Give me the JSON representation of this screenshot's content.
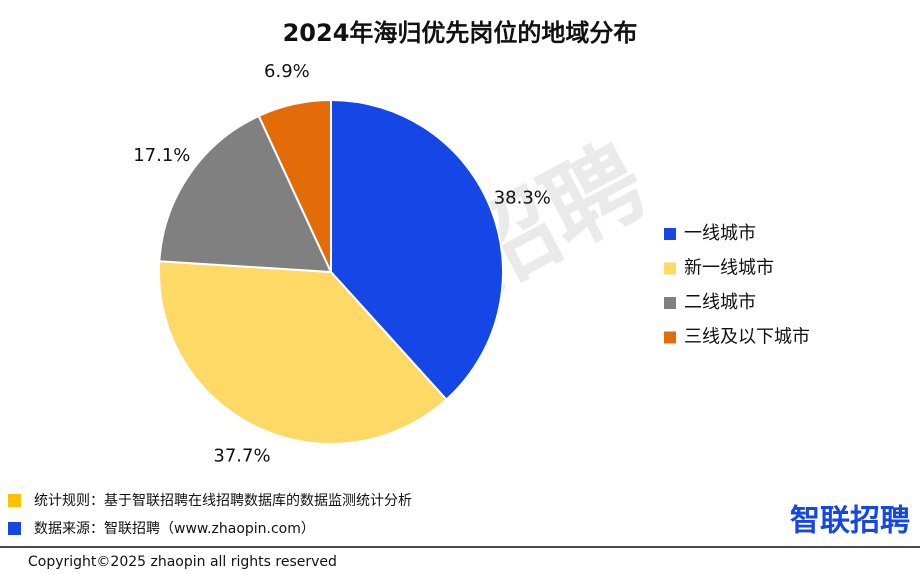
{
  "chart_data": {
    "type": "pie",
    "title": "2024年海归优先岗位的地域分布",
    "categories": [
      "一线城市",
      "新一线城市",
      "二线城市",
      "三线及以下城市"
    ],
    "values": [
      38.3,
      37.7,
      17.1,
      6.9
    ],
    "value_labels": [
      "38.3%",
      "37.7%",
      "17.1%",
      "6.9%"
    ],
    "colors": [
      "#1447e6",
      "#ffd966",
      "#808080",
      "#e36c09"
    ],
    "legend": "right"
  },
  "watermark": "智联招聘",
  "notes": [
    "统计规则：基于智联招聘在线招聘数据库的数据监测统计分析",
    "数据来源：智联招聘（www.zhaopin.com）"
  ],
  "logo": "智联招聘",
  "copyright": "Copyright©2025 zhaopin all rights reserved"
}
